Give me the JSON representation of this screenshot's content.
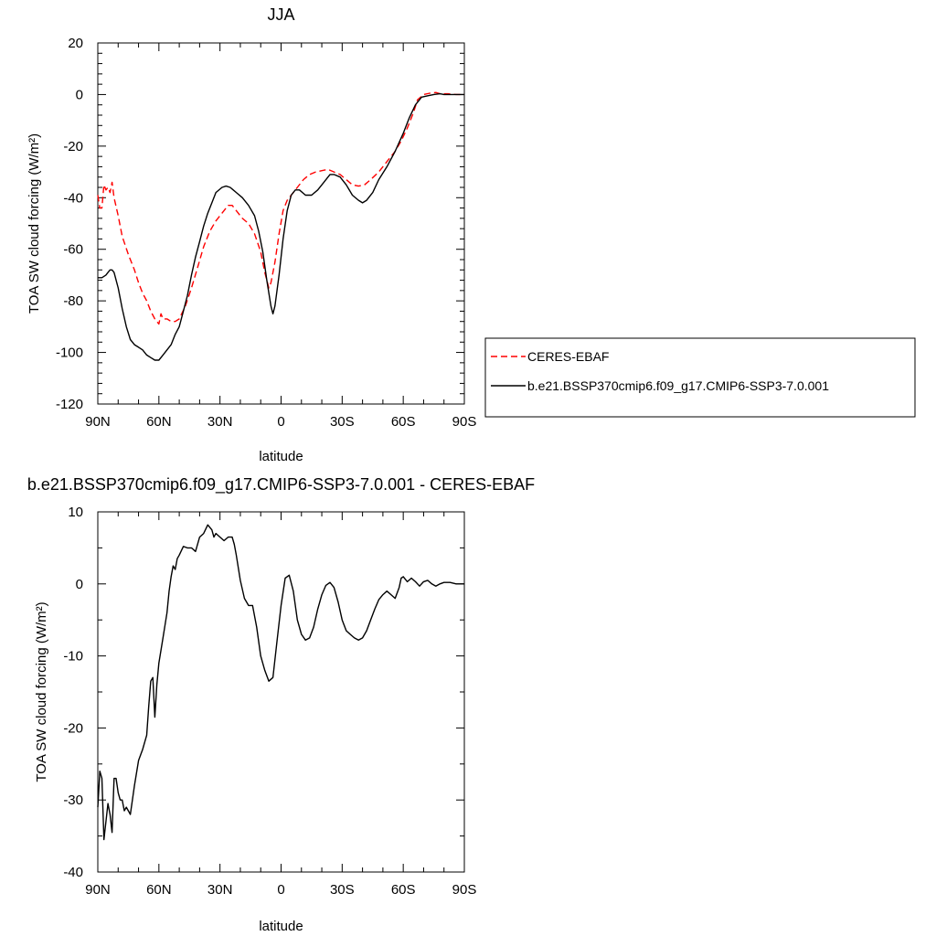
{
  "chart_data": [
    {
      "type": "line",
      "title": "JJA",
      "xlabel": "latitude",
      "ylabel": "TOA SW cloud forcing (W/m²)",
      "xlim": [
        90,
        -90
      ],
      "ylim": [
        -120,
        20
      ],
      "xticks": [
        90,
        60,
        30,
        0,
        -30,
        -60,
        -90
      ],
      "xtick_labels": [
        "90N",
        "60N",
        "30N",
        "0",
        "30S",
        "60S",
        "90S"
      ],
      "yticks": [
        20,
        0,
        -20,
        -40,
        -60,
        -80,
        -100,
        -120
      ],
      "ytick_labels": [
        "20",
        "0",
        "-20",
        "-40",
        "-60",
        "-80",
        "-100",
        "-120"
      ],
      "grid": false,
      "legend_position": "right",
      "series": [
        {
          "name": "CERES-EBAF",
          "color": "#ff0000",
          "dash": "dashed",
          "points": [
            [
              90,
              -39
            ],
            [
              89,
              -44
            ],
            [
              88,
              -44
            ],
            [
              87,
              -35
            ],
            [
              86,
              -37
            ],
            [
              85,
              -36
            ],
            [
              84,
              -38
            ],
            [
              83,
              -34
            ],
            [
              82,
              -40
            ],
            [
              80,
              -47
            ],
            [
              78,
              -55
            ],
            [
              75,
              -62
            ],
            [
              72,
              -68
            ],
            [
              70,
              -73
            ],
            [
              68,
              -77
            ],
            [
              66,
              -80
            ],
            [
              64,
              -84
            ],
            [
              62,
              -87
            ],
            [
              60,
              -89
            ],
            [
              59,
              -85
            ],
            [
              58,
              -87
            ],
            [
              56,
              -87
            ],
            [
              54,
              -88
            ],
            [
              52,
              -88
            ],
            [
              50,
              -87
            ],
            [
              47,
              -82
            ],
            [
              44,
              -75
            ],
            [
              41,
              -67
            ],
            [
              38,
              -59
            ],
            [
              35,
              -53
            ],
            [
              32,
              -49
            ],
            [
              29,
              -46
            ],
            [
              26,
              -43
            ],
            [
              24,
              -43
            ],
            [
              22,
              -45
            ],
            [
              19,
              -48
            ],
            [
              16,
              -50
            ],
            [
              13,
              -54
            ],
            [
              10,
              -61
            ],
            [
              8,
              -69
            ],
            [
              6,
              -75
            ],
            [
              5,
              -73
            ],
            [
              3,
              -65
            ],
            [
              1,
              -54
            ],
            [
              -1,
              -45
            ],
            [
              -3,
              -41
            ],
            [
              -5,
              -39
            ],
            [
              -8,
              -36
            ],
            [
              -11,
              -33
            ],
            [
              -14,
              -31
            ],
            [
              -17,
              -30
            ],
            [
              -20,
              -29.5
            ],
            [
              -23,
              -29
            ],
            [
              -26,
              -30
            ],
            [
              -29,
              -31
            ],
            [
              -32,
              -33
            ],
            [
              -35,
              -35
            ],
            [
              -38,
              -35.5
            ],
            [
              -41,
              -35
            ],
            [
              -44,
              -33
            ],
            [
              -48,
              -30
            ],
            [
              -52,
              -26
            ],
            [
              -56,
              -22
            ],
            [
              -59,
              -18
            ],
            [
              -62,
              -13
            ],
            [
              -65,
              -7
            ],
            [
              -67,
              -2
            ],
            [
              -70,
              0
            ],
            [
              -73,
              0.5
            ],
            [
              -76,
              0.8
            ],
            [
              -78,
              0.3
            ],
            [
              -82,
              0.3
            ],
            [
              -86,
              0
            ],
            [
              -90,
              0
            ]
          ]
        },
        {
          "name": "b.e21.BSSP370cmip6.f09_g17.CMIP6-SSP3-7.0.001",
          "color": "#000000",
          "dash": "solid",
          "points": [
            [
              90,
              -71
            ],
            [
              88,
              -71
            ],
            [
              86,
              -70
            ],
            [
              85,
              -69
            ],
            [
              84,
              -68
            ],
            [
              83,
              -68
            ],
            [
              82,
              -69
            ],
            [
              80,
              -75
            ],
            [
              78,
              -83
            ],
            [
              76,
              -90
            ],
            [
              74,
              -95
            ],
            [
              72,
              -97
            ],
            [
              70,
              -98
            ],
            [
              68,
              -99
            ],
            [
              66,
              -101
            ],
            [
              64,
              -102
            ],
            [
              62,
              -103
            ],
            [
              60,
              -103
            ],
            [
              58,
              -101
            ],
            [
              56,
              -99
            ],
            [
              54,
              -97
            ],
            [
              52,
              -93
            ],
            [
              50,
              -90
            ],
            [
              48,
              -84
            ],
            [
              46,
              -78
            ],
            [
              44,
              -70
            ],
            [
              42,
              -63
            ],
            [
              40,
              -57
            ],
            [
              38,
              -51
            ],
            [
              36,
              -46
            ],
            [
              34,
              -42
            ],
            [
              32,
              -38
            ],
            [
              29,
              -36
            ],
            [
              27,
              -35.5
            ],
            [
              25,
              -36
            ],
            [
              22,
              -38
            ],
            [
              19,
              -40
            ],
            [
              16,
              -43
            ],
            [
              13,
              -47
            ],
            [
              11,
              -53
            ],
            [
              9,
              -61
            ],
            [
              7,
              -72
            ],
            [
              5,
              -82
            ],
            [
              4,
              -85
            ],
            [
              3,
              -82
            ],
            [
              1,
              -70
            ],
            [
              -1,
              -56
            ],
            [
              -3,
              -45
            ],
            [
              -5,
              -39
            ],
            [
              -7,
              -37
            ],
            [
              -9,
              -37
            ],
            [
              -12,
              -39
            ],
            [
              -15,
              -39
            ],
            [
              -18,
              -37
            ],
            [
              -21,
              -34
            ],
            [
              -24,
              -31
            ],
            [
              -26,
              -31
            ],
            [
              -29,
              -32
            ],
            [
              -32,
              -35
            ],
            [
              -35,
              -39
            ],
            [
              -38,
              -41
            ],
            [
              -40,
              -42
            ],
            [
              -42,
              -41
            ],
            [
              -45,
              -38
            ],
            [
              -48,
              -33
            ],
            [
              -52,
              -28
            ],
            [
              -56,
              -22
            ],
            [
              -60,
              -15
            ],
            [
              -63,
              -9
            ],
            [
              -66,
              -4
            ],
            [
              -69,
              -1
            ],
            [
              -72,
              -0.5
            ],
            [
              -75,
              0
            ],
            [
              -78,
              0.3
            ],
            [
              -80,
              0
            ],
            [
              -84,
              0
            ],
            [
              -90,
              0
            ]
          ]
        }
      ]
    },
    {
      "type": "line",
      "title": "b.e21.BSSP370cmip6.f09_g17.CMIP6-SSP3-7.0.001 - CERES-EBAF",
      "xlabel": "latitude",
      "ylabel": "TOA SW cloud forcing (W/m²)",
      "xlim": [
        90,
        -90
      ],
      "ylim": [
        -40,
        10
      ],
      "xticks": [
        90,
        60,
        30,
        0,
        -30,
        -60,
        -90
      ],
      "xtick_labels": [
        "90N",
        "60N",
        "30N",
        "0",
        "30S",
        "60S",
        "90S"
      ],
      "yticks": [
        10,
        0,
        -10,
        -20,
        -30,
        -40
      ],
      "ytick_labels": [
        "10",
        "0",
        "-10",
        "-20",
        "-30",
        "-40"
      ],
      "grid": false,
      "series": [
        {
          "color": "#000000",
          "dash": "solid",
          "points": [
            [
              90,
              -31
            ],
            [
              89,
              -26
            ],
            [
              88,
              -27
            ],
            [
              87,
              -35.5
            ],
            [
              86,
              -33
            ],
            [
              85,
              -30.5
            ],
            [
              84,
              -32
            ],
            [
              83,
              -34.5
            ],
            [
              82,
              -27
            ],
            [
              81,
              -27
            ],
            [
              80,
              -29
            ],
            [
              79,
              -30
            ],
            [
              78,
              -30
            ],
            [
              77,
              -31.5
            ],
            [
              76,
              -31
            ],
            [
              75,
              -31.5
            ],
            [
              74,
              -32
            ],
            [
              72,
              -28
            ],
            [
              70,
              -24.5
            ],
            [
              68,
              -23
            ],
            [
              66,
              -21
            ],
            [
              65,
              -17
            ],
            [
              64,
              -13.5
            ],
            [
              63,
              -13
            ],
            [
              62,
              -18.5
            ],
            [
              61,
              -14
            ],
            [
              60,
              -11
            ],
            [
              58,
              -7.5
            ],
            [
              56,
              -4
            ],
            [
              55,
              -1
            ],
            [
              54,
              1
            ],
            [
              53,
              2.5
            ],
            [
              52,
              2
            ],
            [
              51,
              3.5
            ],
            [
              50,
              4
            ],
            [
              48,
              5.2
            ],
            [
              46,
              5
            ],
            [
              44,
              5
            ],
            [
              42,
              4.5
            ],
            [
              40,
              6.5
            ],
            [
              38,
              7
            ],
            [
              36,
              8.2
            ],
            [
              34,
              7.5
            ],
            [
              33,
              6.5
            ],
            [
              32,
              7
            ],
            [
              30,
              6.5
            ],
            [
              28,
              6
            ],
            [
              26,
              6.5
            ],
            [
              24,
              6.5
            ],
            [
              23,
              5.5
            ],
            [
              22,
              4
            ],
            [
              20,
              0.5
            ],
            [
              18,
              -2
            ],
            [
              16,
              -3
            ],
            [
              14,
              -3
            ],
            [
              12,
              -6
            ],
            [
              10,
              -10
            ],
            [
              8,
              -12
            ],
            [
              6,
              -13.5
            ],
            [
              4,
              -13
            ],
            [
              2,
              -8
            ],
            [
              0,
              -3
            ],
            [
              -2,
              0.8
            ],
            [
              -4,
              1.2
            ],
            [
              -6,
              -1
            ],
            [
              -8,
              -5
            ],
            [
              -10,
              -7
            ],
            [
              -12,
              -7.8
            ],
            [
              -14,
              -7.5
            ],
            [
              -16,
              -6
            ],
            [
              -18,
              -3.5
            ],
            [
              -20,
              -1.5
            ],
            [
              -22,
              -0.2
            ],
            [
              -24,
              0.2
            ],
            [
              -26,
              -0.5
            ],
            [
              -28,
              -2.5
            ],
            [
              -30,
              -5
            ],
            [
              -32,
              -6.5
            ],
            [
              -34,
              -7
            ],
            [
              -36,
              -7.5
            ],
            [
              -38,
              -7.8
            ],
            [
              -40,
              -7.5
            ],
            [
              -42,
              -6.5
            ],
            [
              -44,
              -5
            ],
            [
              -46,
              -3.5
            ],
            [
              -48,
              -2.2
            ],
            [
              -50,
              -1.5
            ],
            [
              -52,
              -1
            ],
            [
              -54,
              -1.5
            ],
            [
              -56,
              -2
            ],
            [
              -58,
              -0.5
            ],
            [
              -59,
              0.8
            ],
            [
              -60,
              1
            ],
            [
              -62,
              0.3
            ],
            [
              -64,
              0.8
            ],
            [
              -66,
              0.3
            ],
            [
              -68,
              -0.3
            ],
            [
              -70,
              0.3
            ],
            [
              -72,
              0.5
            ],
            [
              -74,
              0
            ],
            [
              -76,
              -0.3
            ],
            [
              -78,
              0
            ],
            [
              -80,
              0.2
            ],
            [
              -83,
              0.2
            ],
            [
              -86,
              0
            ],
            [
              -90,
              0
            ]
          ]
        }
      ]
    }
  ]
}
